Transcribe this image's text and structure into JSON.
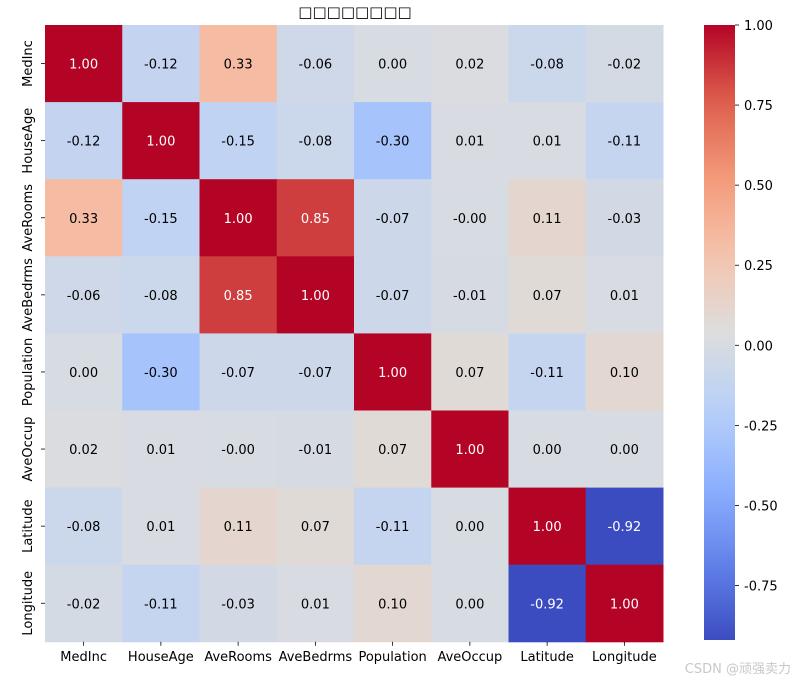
{
  "chart_data": {
    "type": "heatmap",
    "title": "□□□□□□□□",
    "xlabel": "",
    "ylabel": "",
    "x_labels": [
      "MedInc",
      "HouseAge",
      "AveRooms",
      "AveBedrms",
      "Population",
      "AveOccup",
      "Latitude",
      "Longitude"
    ],
    "y_labels": [
      "MedInc",
      "HouseAge",
      "AveRooms",
      "AveBedrms",
      "Population",
      "AveOccup",
      "Latitude",
      "Longitude"
    ],
    "values": [
      [
        1.0,
        -0.12,
        0.33,
        -0.06,
        0.0,
        0.02,
        -0.08,
        -0.02
      ],
      [
        -0.12,
        1.0,
        -0.15,
        -0.08,
        -0.3,
        0.01,
        0.01,
        -0.11
      ],
      [
        0.33,
        -0.15,
        1.0,
        0.85,
        -0.07,
        -0.0,
        0.11,
        -0.03
      ],
      [
        -0.06,
        -0.08,
        0.85,
        1.0,
        -0.07,
        -0.01,
        0.07,
        0.01
      ],
      [
        0.0,
        -0.3,
        -0.07,
        -0.07,
        1.0,
        0.07,
        -0.11,
        0.1
      ],
      [
        0.02,
        0.01,
        -0.0,
        -0.01,
        0.07,
        1.0,
        0.0,
        0.0
      ],
      [
        -0.08,
        0.01,
        0.11,
        0.07,
        -0.11,
        0.0,
        1.0,
        -0.92
      ],
      [
        -0.02,
        -0.11,
        -0.03,
        0.01,
        0.1,
        0.0,
        -0.92,
        1.0
      ]
    ],
    "cell_labels": [
      [
        "1.00",
        "-0.12",
        "0.33",
        "-0.06",
        "0.00",
        "0.02",
        "-0.08",
        "-0.02"
      ],
      [
        "-0.12",
        "1.00",
        "-0.15",
        "-0.08",
        "-0.30",
        "0.01",
        "0.01",
        "-0.11"
      ],
      [
        "0.33",
        "-0.15",
        "1.00",
        "0.85",
        "-0.07",
        "-0.00",
        "0.11",
        "-0.03"
      ],
      [
        "-0.06",
        "-0.08",
        "0.85",
        "1.00",
        "-0.07",
        "-0.01",
        "0.07",
        "0.01"
      ],
      [
        "0.00",
        "-0.30",
        "-0.07",
        "-0.07",
        "1.00",
        "0.07",
        "-0.11",
        "0.10"
      ],
      [
        "0.02",
        "0.01",
        "-0.00",
        "-0.01",
        "0.07",
        "1.00",
        "0.00",
        "0.00"
      ],
      [
        "-0.08",
        "0.01",
        "0.11",
        "0.07",
        "-0.11",
        "0.00",
        "1.00",
        "-0.92"
      ],
      [
        "-0.02",
        "-0.11",
        "-0.03",
        "0.01",
        "0.10",
        "0.00",
        "-0.92",
        "1.00"
      ]
    ],
    "colormap": "coolwarm",
    "colorbar": {
      "range": [
        -0.92,
        1.0
      ],
      "ticks": [
        1.0,
        0.75,
        0.5,
        0.25,
        0.0,
        -0.25,
        -0.5,
        -0.75
      ],
      "tick_labels": [
        "1.00",
        "0.75",
        "0.50",
        "0.25",
        "0.00",
        "-0.25",
        "-0.50",
        "-0.75"
      ]
    }
  },
  "watermark": "CSDN @顽强卖力"
}
